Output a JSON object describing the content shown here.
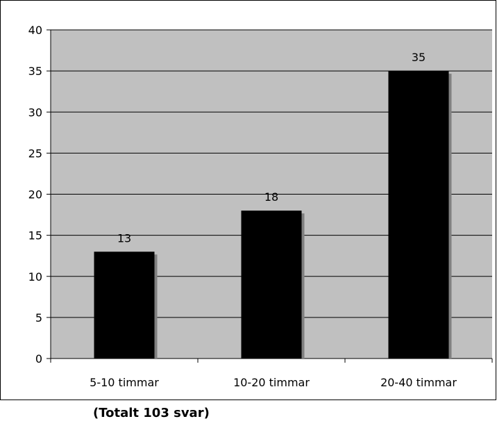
{
  "chart_data": {
    "type": "bar",
    "categories": [
      "5-10 timmar",
      "10-20 timmar",
      "20-40 timmar"
    ],
    "values": [
      13,
      18,
      35
    ],
    "data_labels": [
      "13",
      "18",
      "35"
    ],
    "title": "",
    "xlabel": "",
    "ylabel": "",
    "ylim": [
      0,
      40
    ],
    "yticks": [
      0,
      5,
      10,
      15,
      20,
      25,
      30,
      35,
      40
    ],
    "ytick_labels": [
      "0",
      "5",
      "10",
      "15",
      "20",
      "25",
      "30",
      "35",
      "40"
    ],
    "grid": true,
    "legend": false,
    "colors": {
      "plot_background": "#c0c0c0",
      "bar": "#000000",
      "bar_shadow": "#808080",
      "gridline": "#000000"
    }
  },
  "footnote": "(Totalt 103 svar)"
}
